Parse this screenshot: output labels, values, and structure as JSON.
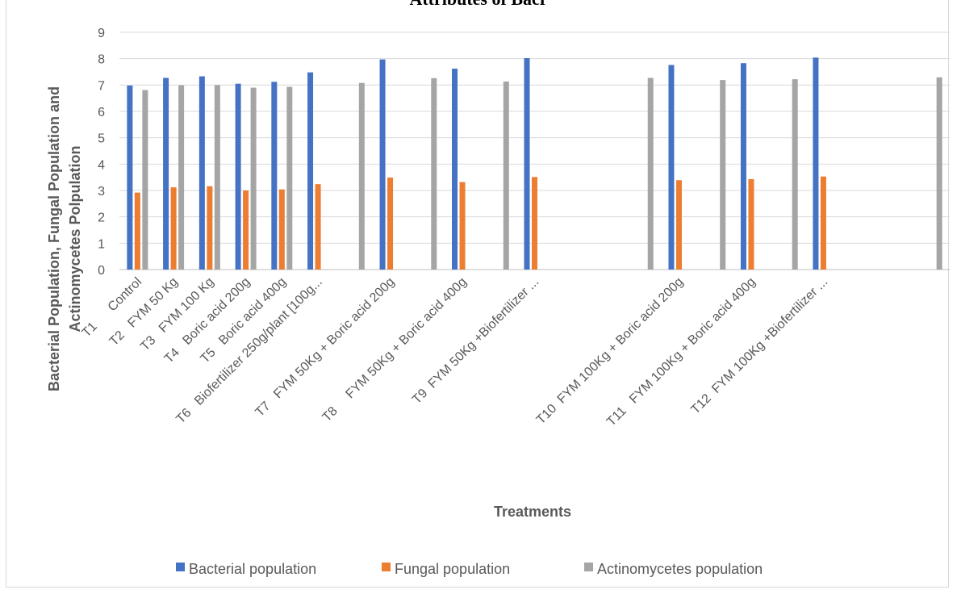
{
  "chart_data": {
    "type": "bar",
    "title": "Attributes of Bacr",
    "xlabel": "Treatments",
    "ylabel_line1": "Bacterial Population, Fungal Population and",
    "ylabel_line2": "Actinomycetes Polpulation",
    "ylim": [
      0,
      9
    ],
    "yticks": [
      0,
      1,
      2,
      3,
      4,
      5,
      6,
      7,
      8,
      9
    ],
    "grid": true,
    "legend_position": "bottom",
    "categories": [
      "T1      Control",
      "T2   FYM 50 Kg",
      "T3   FYM 100 Kg",
      "T4   Boric acid 200g",
      "T5   Boric acid 400g",
      "T6   Biofertilizer 250g/plant [100g...",
      "",
      "T7   FYM 50Kg + Boric acid 200g",
      "",
      "T8     FYM 50Kg + Boric acid 400g",
      "",
      "T9  FYM 50Kg +Biofertilizer ...",
      "",
      "",
      "",
      "T10  FYM 100Kg + Boric acid 200g",
      "",
      "T11   FYM 100Kg + Boric acid 400g",
      "",
      "T12  FYM 100Kg +Biofertilizer ...",
      "",
      "",
      ""
    ],
    "series": [
      {
        "name": "Bacterial population",
        "color": "#4472c4",
        "values": [
          6.98,
          7.27,
          7.33,
          7.05,
          7.12,
          7.48,
          null,
          7.97,
          null,
          7.62,
          null,
          8.02,
          null,
          null,
          null,
          7.76,
          null,
          7.83,
          null,
          8.04,
          null,
          null,
          null
        ]
      },
      {
        "name": "Fungal population",
        "color": "#ed7d31",
        "values": [
          2.92,
          3.12,
          3.16,
          3.0,
          3.04,
          3.24,
          null,
          3.49,
          null,
          3.32,
          null,
          3.51,
          null,
          null,
          null,
          3.39,
          null,
          3.43,
          null,
          3.53,
          null,
          null,
          null
        ]
      },
      {
        "name": "Actinomycetes population",
        "color": "#a5a5a5",
        "values": [
          6.81,
          6.99,
          7.0,
          6.9,
          6.93,
          null,
          7.08,
          null,
          7.26,
          null,
          7.13,
          null,
          null,
          null,
          7.27,
          null,
          7.19,
          null,
          7.22,
          null,
          null,
          null,
          7.29
        ]
      }
    ]
  }
}
